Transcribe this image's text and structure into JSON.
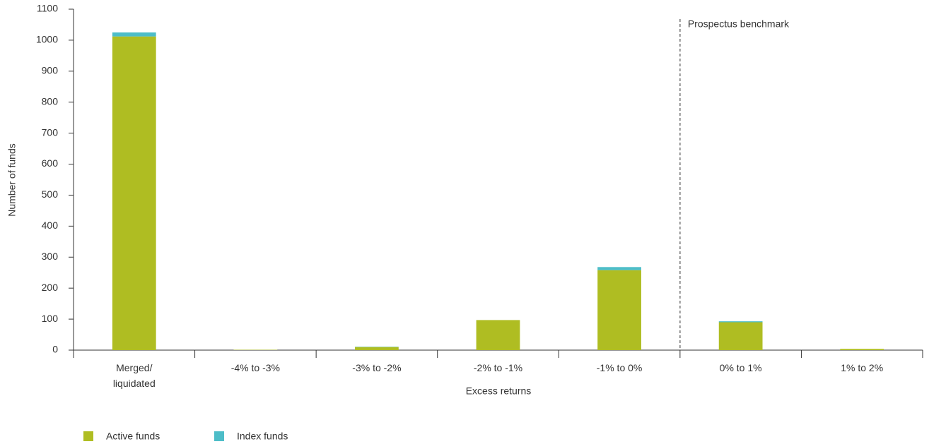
{
  "chart_data": {
    "type": "stacked_bar",
    "x_label": "Excess returns",
    "y_label": "Number of funds",
    "categories": [
      "Merged/ liquidated",
      "-4% to -3%",
      "-3% to -2%",
      "-2% to -1%",
      "-1% to 0%",
      "0% to 1%",
      "1% to 2%"
    ],
    "series": [
      {
        "name": "Active funds",
        "color": "#afbd22",
        "values": [
          1012,
          1,
          10,
          97,
          258,
          90,
          4
        ]
      },
      {
        "name": "Index funds",
        "color": "#4dbdc8",
        "values": [
          13,
          0,
          1,
          0,
          10,
          3,
          0
        ]
      }
    ],
    "ylim": [
      0,
      1100
    ],
    "yticks": [
      0,
      100,
      200,
      300,
      400,
      500,
      600,
      700,
      800,
      900,
      1000,
      1100
    ],
    "grid": false,
    "legend": "bottom-left",
    "annotation": {
      "text": "Prospectus benchmark",
      "before_category": "0% to 1%"
    }
  }
}
